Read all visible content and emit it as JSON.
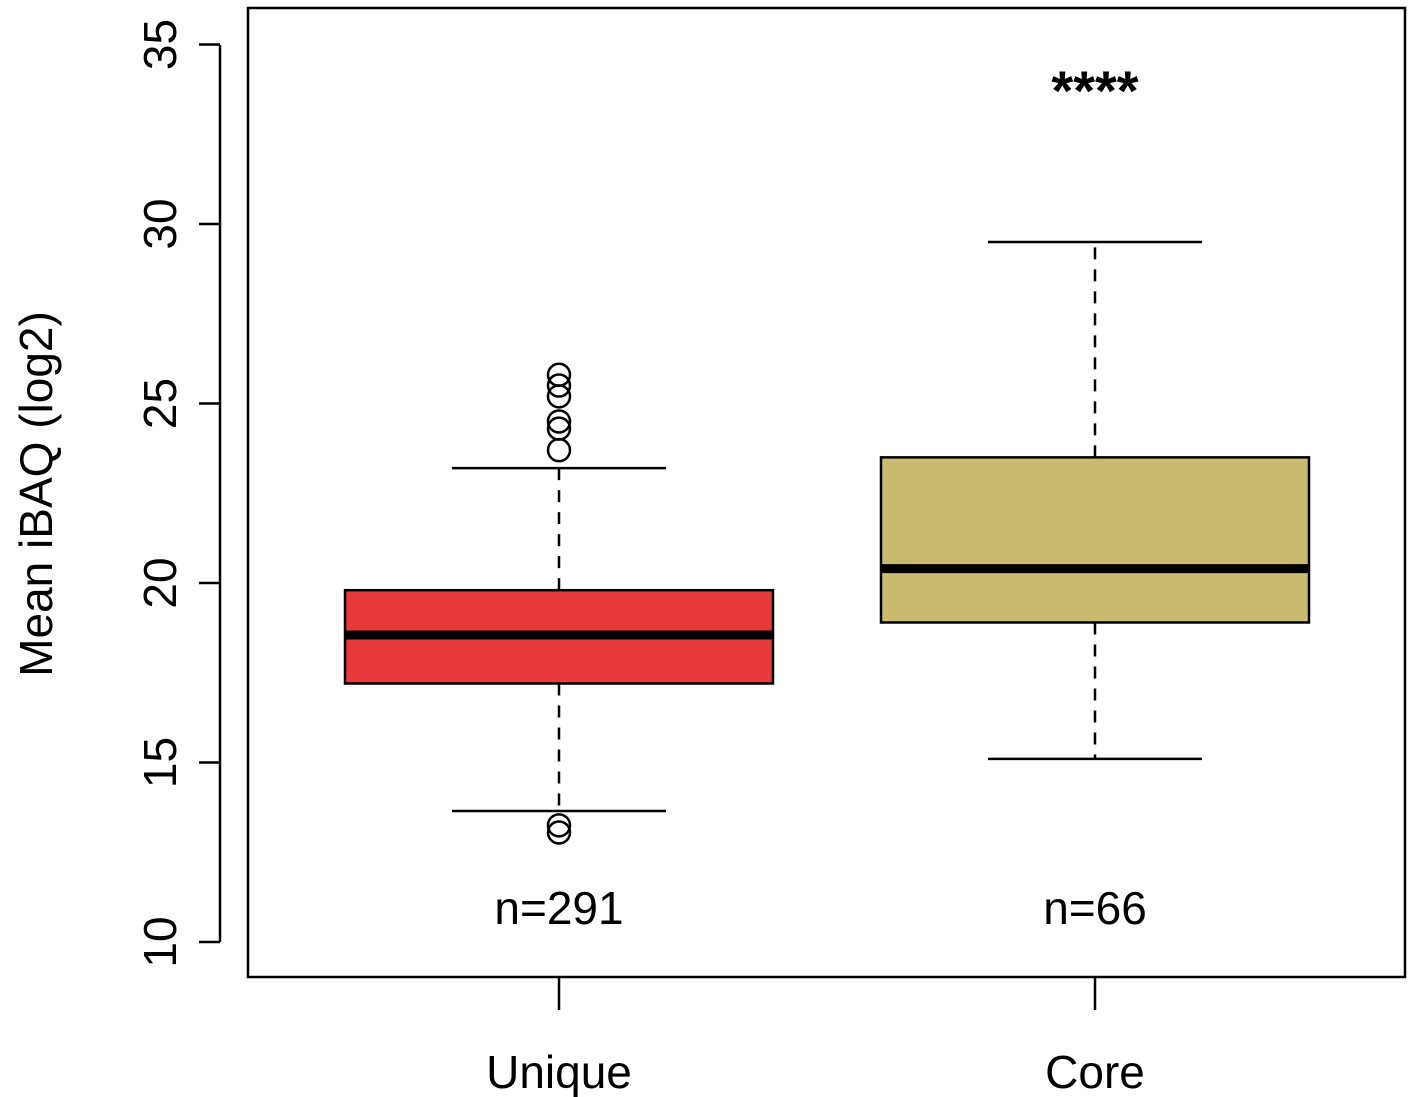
{
  "chart_data": {
    "type": "box",
    "title": "",
    "xlabel": "",
    "ylabel": "Mean iBAQ (log2)",
    "ylim": [
      9,
      36
    ],
    "yticks": [
      10,
      15,
      20,
      25,
      30,
      35
    ],
    "yticks_labels": [
      "10",
      "15",
      "20",
      "25",
      "30",
      "35"
    ],
    "categories": [
      "Unique",
      "Core"
    ],
    "boxes": [
      {
        "category": "Unique",
        "n_label": "n=291",
        "color": "#e8393b",
        "whisker_low": 13.65,
        "q1": 17.2,
        "median": 18.55,
        "q3": 19.8,
        "whisker_high": 23.2,
        "outliers": [
          25.8,
          25.5,
          25.2,
          24.5,
          24.3,
          23.7,
          13.25,
          13.05
        ],
        "annotation": ""
      },
      {
        "category": "Core",
        "n_label": "n=66",
        "color": "#c9bb70",
        "whisker_low": 15.1,
        "q1": 18.9,
        "median": 20.4,
        "q3": 23.5,
        "whisker_high": 29.5,
        "outliers": [],
        "annotation": "****"
      }
    ],
    "grid": false,
    "legend": "none"
  }
}
